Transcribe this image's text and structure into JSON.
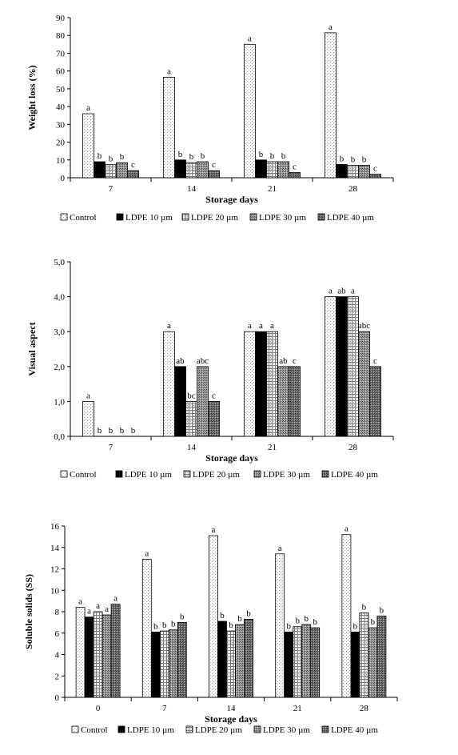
{
  "colors": {
    "axis": "#000000",
    "bar_stroke": "#000000",
    "control_dot": "#9a9a9a",
    "ldpe10": "#000000",
    "ldpe20_grid": "#7a7a7a",
    "ldpe30_dark": "#5a5a5a",
    "ldpe40_dark": "#3a3a3a"
  },
  "chart_data": [
    {
      "type": "bar",
      "title": "",
      "xlabel": "Storage days",
      "ylabel": "Weight loss (%)",
      "ylim": [
        0,
        90
      ],
      "yticks": [
        "0",
        "10",
        "20",
        "30",
        "40",
        "50",
        "60",
        "70",
        "80",
        "90"
      ],
      "ytick_values": [
        0,
        10,
        20,
        30,
        40,
        50,
        60,
        70,
        80,
        90
      ],
      "categories": [
        "7",
        "14",
        "21",
        "28"
      ],
      "grid": false,
      "legend": "bottom",
      "series": [
        {
          "name": "Control",
          "pattern": "dots",
          "values": [
            36,
            56.5,
            75,
            81.5
          ],
          "letters": [
            "a",
            "a",
            "a",
            "a"
          ]
        },
        {
          "name": "LDPE 10 µm",
          "pattern": "solid",
          "values": [
            9,
            10,
            10,
            7.5
          ],
          "letters": [
            "b",
            "b",
            "b",
            "b"
          ]
        },
        {
          "name": "LDPE 20 µm",
          "pattern": "grid",
          "values": [
            7.5,
            8.5,
            9,
            7
          ],
          "letters": [
            "b",
            "b",
            "b",
            "b"
          ]
        },
        {
          "name": "LDPE 30 µm",
          "pattern": "dense",
          "values": [
            8.5,
            9,
            9,
            7
          ],
          "letters": [
            "b",
            "b",
            "b",
            "b"
          ]
        },
        {
          "name": "LDPE 40 µm",
          "pattern": "darker",
          "values": [
            4,
            4,
            3,
            2
          ],
          "letters": [
            "c",
            "c",
            "c",
            "c"
          ]
        }
      ]
    },
    {
      "type": "bar",
      "title": "",
      "xlabel": "Storage days",
      "ylabel": "Visual  aspect",
      "ylim": [
        0,
        5
      ],
      "yticks": [
        "0,0",
        "1,0",
        "2,0",
        "3,0",
        "4,0",
        "5,0"
      ],
      "ytick_values": [
        0,
        1,
        2,
        3,
        4,
        5
      ],
      "categories": [
        "7",
        "14",
        "21",
        "28"
      ],
      "grid": false,
      "legend": "bottom",
      "series": [
        {
          "name": "Control",
          "pattern": "dots",
          "values": [
            1,
            3,
            3,
            4
          ],
          "letters": [
            "a",
            "a",
            "a",
            "a"
          ]
        },
        {
          "name": "LDPE  10 µm",
          "pattern": "solid",
          "values": [
            0,
            2,
            3,
            4
          ],
          "letters": [
            "b",
            "ab",
            "a",
            "ab"
          ]
        },
        {
          "name": "LDPE 20 µm",
          "pattern": "grid",
          "values": [
            0,
            1,
            3,
            4
          ],
          "letters": [
            "b",
            "bc",
            "a",
            "a"
          ]
        },
        {
          "name": "LDPE 30 µm",
          "pattern": "dense",
          "values": [
            0,
            2,
            2,
            3
          ],
          "letters": [
            "b",
            "abc",
            "ab",
            "abc"
          ]
        },
        {
          "name": "LDPE 40 µm",
          "pattern": "darker",
          "values": [
            0,
            1,
            2,
            2
          ],
          "letters": [
            "b",
            "c",
            "c",
            "c"
          ]
        }
      ]
    },
    {
      "type": "bar",
      "title": "",
      "xlabel": "Storage days",
      "ylabel": "Soluble solids (SS)",
      "ylim": [
        0,
        16
      ],
      "yticks": [
        "0",
        "2",
        "4",
        "6",
        "8",
        "10",
        "12",
        "14",
        "16"
      ],
      "ytick_values": [
        0,
        2,
        4,
        6,
        8,
        10,
        12,
        14,
        16
      ],
      "categories": [
        "0",
        "7",
        "14",
        "21",
        "28"
      ],
      "grid": false,
      "legend": "bottom",
      "series": [
        {
          "name": "Control",
          "pattern": "dots",
          "values": [
            8.4,
            12.9,
            15.1,
            13.4,
            15.2
          ],
          "letters": [
            "a",
            "a",
            "a",
            "a",
            "a"
          ]
        },
        {
          "name": "LDPE 10 µm",
          "pattern": "solid",
          "values": [
            7.5,
            6.1,
            7.1,
            6.1,
            6.1
          ],
          "letters": [
            "a",
            "b",
            "b",
            "b",
            "b"
          ]
        },
        {
          "name": "LDPE 20 µm",
          "pattern": "grid",
          "values": [
            8,
            6.2,
            6.2,
            6.6,
            7.9
          ],
          "letters": [
            "a",
            "b",
            "b",
            "b",
            "b"
          ]
        },
        {
          "name": "LDPE 30 µm",
          "pattern": "dense",
          "values": [
            7.7,
            6.3,
            6.8,
            6.8,
            6.5
          ],
          "letters": [
            "a",
            "b",
            "b",
            "b",
            "b"
          ]
        },
        {
          "name": "LDPE 40 µm",
          "pattern": "darker",
          "values": [
            8.7,
            7,
            7.3,
            6.5,
            7.6
          ],
          "letters": [
            "a",
            "b",
            "b",
            "b",
            "b"
          ]
        }
      ]
    }
  ]
}
